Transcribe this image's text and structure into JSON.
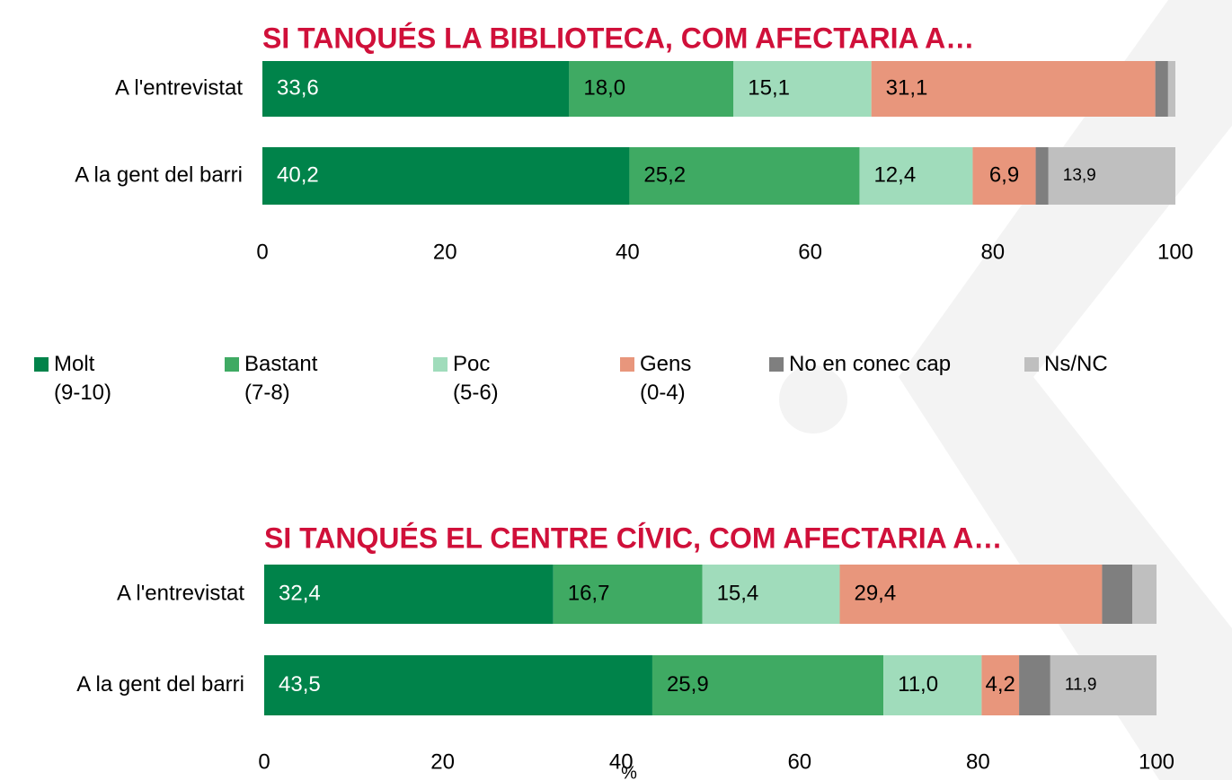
{
  "chart_data": [
    {
      "type": "bar",
      "orientation": "horizontal",
      "stacked": true,
      "title": "SI TANQUÉS LA BIBLIOTECA, COM AFECTARIA A…",
      "categories": [
        "A l'entrevistat",
        "A la gent del barri"
      ],
      "xlim": [
        0,
        100
      ],
      "xticks": [
        0,
        20,
        40,
        60,
        80,
        100
      ],
      "legend": "between",
      "series": [
        {
          "name": "Molt\n(9-10)",
          "color": "#00834a",
          "values": [
            33.6,
            40.2
          ],
          "value_labels": [
            "33,6",
            "40,2"
          ]
        },
        {
          "name": "Bastant\n(7-8)",
          "color": "#3faa63",
          "values": [
            18.0,
            25.2
          ],
          "value_labels": [
            "18,0",
            "25,2"
          ]
        },
        {
          "name": "Poc\n(5-6)",
          "color": "#a0dcbb",
          "values": [
            15.1,
            12.4
          ],
          "value_labels": [
            "15,1",
            "12,4"
          ]
        },
        {
          "name": "Gens\n(0-4)",
          "color": "#e8967c",
          "values": [
            31.1,
            6.9
          ],
          "value_labels": [
            "31,1",
            "6,9"
          ]
        },
        {
          "name": "No en conec cap",
          "color": "#7f7f7f",
          "values": [
            1.4,
            1.4
          ],
          "value_labels": [
            null,
            null
          ]
        },
        {
          "name": "Ns/NC",
          "color": "#bfbfbf",
          "values": [
            0.8,
            13.9
          ],
          "value_labels": [
            null,
            "13,9"
          ]
        }
      ]
    },
    {
      "type": "bar",
      "orientation": "horizontal",
      "stacked": true,
      "title": "SI TANQUÉS EL CENTRE CÍVIC, COM AFECTARIA A…",
      "categories": [
        "A l'entrevistat",
        "A la gent del barri"
      ],
      "xlim": [
        0,
        100
      ],
      "xticks": [
        0,
        20,
        40,
        60,
        80,
        100
      ],
      "xlabel": "%",
      "series": [
        {
          "color": "#00834a",
          "values": [
            32.4,
            43.5
          ],
          "value_labels": [
            "32,4",
            "43,5"
          ]
        },
        {
          "color": "#3faa63",
          "values": [
            16.7,
            25.9
          ],
          "value_labels": [
            "16,7",
            "25,9"
          ]
        },
        {
          "color": "#a0dcbb",
          "values": [
            15.4,
            11.0
          ],
          "value_labels": [
            "15,4",
            "11,0"
          ]
        },
        {
          "color": "#e8967c",
          "values": [
            29.4,
            4.2
          ],
          "value_labels": [
            "29,4",
            "4,2"
          ]
        },
        {
          "color": "#7f7f7f",
          "values": [
            3.4,
            3.5
          ],
          "value_labels": [
            null,
            null
          ]
        },
        {
          "color": "#bfbfbf",
          "values": [
            2.7,
            11.9
          ],
          "value_labels": [
            null,
            "11,9"
          ]
        }
      ]
    }
  ]
}
